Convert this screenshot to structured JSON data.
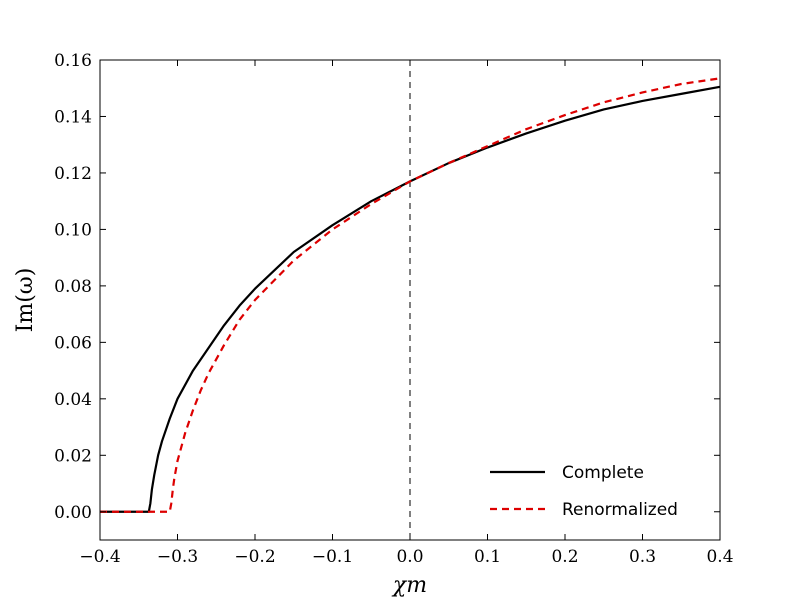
{
  "chart_data": {
    "type": "line",
    "xlabel": "χm",
    "ylabel": "Im(ω)",
    "xlim": [
      -0.4,
      0.4
    ],
    "ylim": [
      -0.01,
      0.16
    ],
    "x_ticks": [
      -0.4,
      -0.3,
      -0.2,
      -0.1,
      0.0,
      0.1,
      0.2,
      0.3,
      0.4
    ],
    "x_tick_labels": [
      "−0.4",
      "−0.3",
      "−0.2",
      "−0.1",
      "0.0",
      "0.1",
      "0.2",
      "0.3",
      "0.4"
    ],
    "y_ticks": [
      0.0,
      0.02,
      0.04,
      0.06,
      0.08,
      0.1,
      0.12,
      0.14,
      0.16
    ],
    "y_tick_labels": [
      "0.00",
      "0.02",
      "0.04",
      "0.06",
      "0.08",
      "0.10",
      "0.12",
      "0.14",
      "0.16"
    ],
    "grid": false,
    "legend_position": "lower-right",
    "reference_line": {
      "x": 0.0,
      "style": "dashed",
      "color": "#000000"
    },
    "series": [
      {
        "name": "Complete",
        "color": "#000000",
        "style": "solid",
        "x": [
          -0.4,
          -0.37,
          -0.34,
          -0.337,
          -0.335,
          -0.333,
          -0.33,
          -0.325,
          -0.32,
          -0.31,
          -0.3,
          -0.28,
          -0.26,
          -0.24,
          -0.22,
          -0.2,
          -0.15,
          -0.1,
          -0.05,
          0.0,
          0.05,
          0.1,
          0.15,
          0.2,
          0.25,
          0.3,
          0.35,
          0.4
        ],
        "y": [
          0.0,
          0.0,
          0.0,
          0.0,
          0.003,
          0.008,
          0.013,
          0.02,
          0.025,
          0.033,
          0.04,
          0.05,
          0.058,
          0.066,
          0.073,
          0.079,
          0.092,
          0.1015,
          0.11,
          0.117,
          0.1235,
          0.129,
          0.134,
          0.1385,
          0.1425,
          0.1455,
          0.148,
          0.1505
        ]
      },
      {
        "name": "Renormalized",
        "color": "#dd0000",
        "style": "dashed",
        "x": [
          -0.4,
          -0.35,
          -0.31,
          -0.308,
          -0.306,
          -0.304,
          -0.3,
          -0.295,
          -0.29,
          -0.28,
          -0.27,
          -0.26,
          -0.24,
          -0.22,
          -0.2,
          -0.15,
          -0.1,
          -0.05,
          0.0,
          0.05,
          0.1,
          0.15,
          0.2,
          0.25,
          0.3,
          0.35,
          0.4
        ],
        "y": [
          0.0,
          0.0,
          0.0,
          0.003,
          0.008,
          0.012,
          0.018,
          0.023,
          0.028,
          0.036,
          0.043,
          0.049,
          0.059,
          0.068,
          0.075,
          0.089,
          0.1,
          0.109,
          0.117,
          0.1235,
          0.1295,
          0.1355,
          0.1405,
          0.145,
          0.1485,
          0.1515,
          0.1535
        ]
      }
    ]
  }
}
